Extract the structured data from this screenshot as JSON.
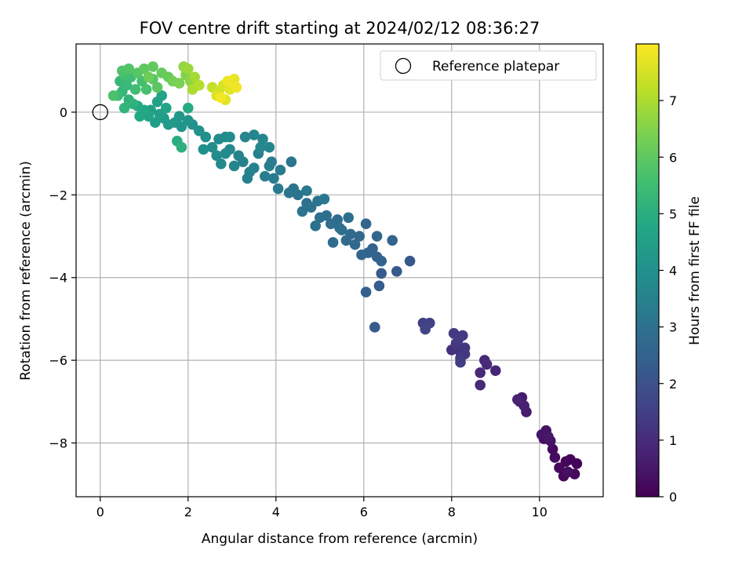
{
  "chart_data": {
    "type": "scatter",
    "title": "FOV centre drift starting at 2024/02/12 08:36:27",
    "xlabel": "Angular distance from reference (arcmin)",
    "ylabel": "Rotation from reference (arcmin)",
    "xlim": [
      -0.55,
      11.45
    ],
    "ylim": [
      -9.3,
      1.65
    ],
    "xticks": [
      0,
      2,
      4,
      6,
      8,
      10
    ],
    "yticks": [
      0,
      -2,
      -4,
      -6,
      -8
    ],
    "grid": true,
    "legend": {
      "position": "top-right",
      "entries": [
        "Reference platepar"
      ]
    },
    "reference_point": {
      "label": "Reference platepar",
      "x": 0,
      "y": 0
    },
    "colorbar": {
      "label": "Hours from first FF file",
      "colormap": "viridis",
      "range": [
        0,
        8.0
      ],
      "ticks": [
        0,
        1,
        2,
        3,
        4,
        5,
        6,
        7
      ]
    },
    "points": [
      {
        "x": 10.85,
        "y": -8.5,
        "hours": 0.05
      },
      {
        "x": 10.7,
        "y": -8.4,
        "hours": 0.1
      },
      {
        "x": 10.6,
        "y": -8.45,
        "hours": 0.12
      },
      {
        "x": 10.8,
        "y": -8.75,
        "hours": 0.15
      },
      {
        "x": 10.55,
        "y": -8.8,
        "hours": 0.18
      },
      {
        "x": 10.45,
        "y": -8.6,
        "hours": 0.2
      },
      {
        "x": 10.3,
        "y": -8.15,
        "hours": 0.25
      },
      {
        "x": 10.35,
        "y": -8.35,
        "hours": 0.28
      },
      {
        "x": 10.65,
        "y": -8.7,
        "hours": 0.3
      },
      {
        "x": 10.1,
        "y": -7.9,
        "hours": 0.35
      },
      {
        "x": 10.15,
        "y": -7.7,
        "hours": 0.4
      },
      {
        "x": 10.25,
        "y": -7.95,
        "hours": 0.42
      },
      {
        "x": 10.05,
        "y": -7.8,
        "hours": 0.45
      },
      {
        "x": 10.2,
        "y": -7.85,
        "hours": 0.5
      },
      {
        "x": 9.6,
        "y": -6.9,
        "hours": 0.6
      },
      {
        "x": 9.7,
        "y": -7.25,
        "hours": 0.65
      },
      {
        "x": 9.55,
        "y": -7.0,
        "hours": 0.7
      },
      {
        "x": 9.65,
        "y": -7.1,
        "hours": 0.72
      },
      {
        "x": 9.5,
        "y": -6.95,
        "hours": 0.75
      },
      {
        "x": 9.0,
        "y": -6.25,
        "hours": 0.85
      },
      {
        "x": 8.75,
        "y": -6.0,
        "hours": 0.9
      },
      {
        "x": 8.65,
        "y": -6.3,
        "hours": 0.92
      },
      {
        "x": 8.8,
        "y": -6.1,
        "hours": 0.95
      },
      {
        "x": 8.65,
        "y": -6.6,
        "hours": 0.98
      },
      {
        "x": 8.0,
        "y": -5.75,
        "hours": 1.1
      },
      {
        "x": 8.2,
        "y": -5.8,
        "hours": 1.15
      },
      {
        "x": 8.3,
        "y": -5.7,
        "hours": 1.2
      },
      {
        "x": 8.1,
        "y": -5.6,
        "hours": 1.25
      },
      {
        "x": 8.2,
        "y": -5.95,
        "hours": 1.3
      },
      {
        "x": 8.3,
        "y": -5.85,
        "hours": 1.32
      },
      {
        "x": 8.05,
        "y": -5.35,
        "hours": 1.35
      },
      {
        "x": 8.25,
        "y": -5.4,
        "hours": 1.38
      },
      {
        "x": 8.15,
        "y": -5.5,
        "hours": 1.4
      },
      {
        "x": 8.2,
        "y": -6.05,
        "hours": 1.42
      },
      {
        "x": 7.35,
        "y": -5.1,
        "hours": 1.5
      },
      {
        "x": 7.5,
        "y": -5.1,
        "hours": 1.55
      },
      {
        "x": 7.4,
        "y": -5.25,
        "hours": 1.6
      },
      {
        "x": 7.05,
        "y": -3.6,
        "hours": 2.2
      },
      {
        "x": 6.75,
        "y": -3.85,
        "hours": 2.25
      },
      {
        "x": 6.4,
        "y": -3.9,
        "hours": 2.3
      },
      {
        "x": 6.35,
        "y": -4.2,
        "hours": 2.35
      },
      {
        "x": 6.25,
        "y": -5.2,
        "hours": 2.3
      },
      {
        "x": 6.05,
        "y": -4.35,
        "hours": 2.4
      },
      {
        "x": 6.3,
        "y": -3.5,
        "hours": 2.45
      },
      {
        "x": 6.2,
        "y": -3.3,
        "hours": 2.5
      },
      {
        "x": 6.1,
        "y": -3.4,
        "hours": 2.55
      },
      {
        "x": 5.95,
        "y": -3.45,
        "hours": 2.6
      },
      {
        "x": 6.4,
        "y": -3.6,
        "hours": 2.6
      },
      {
        "x": 6.65,
        "y": -3.1,
        "hours": 2.55
      },
      {
        "x": 6.05,
        "y": -2.7,
        "hours": 2.62
      },
      {
        "x": 6.3,
        "y": -3.0,
        "hours": 2.65
      },
      {
        "x": 5.8,
        "y": -3.2,
        "hours": 2.7
      },
      {
        "x": 5.9,
        "y": -3.0,
        "hours": 2.72
      },
      {
        "x": 5.7,
        "y": -2.95,
        "hours": 2.75
      },
      {
        "x": 5.6,
        "y": -3.1,
        "hours": 2.78
      },
      {
        "x": 5.5,
        "y": -2.85,
        "hours": 2.8
      },
      {
        "x": 5.3,
        "y": -3.15,
        "hours": 2.82
      },
      {
        "x": 5.4,
        "y": -2.6,
        "hours": 2.85
      },
      {
        "x": 5.25,
        "y": -2.7,
        "hours": 2.88
      },
      {
        "x": 5.15,
        "y": -2.5,
        "hours": 2.9
      },
      {
        "x": 5.0,
        "y": -2.55,
        "hours": 2.92
      },
      {
        "x": 4.9,
        "y": -2.75,
        "hours": 2.95
      },
      {
        "x": 4.8,
        "y": -2.3,
        "hours": 2.98
      },
      {
        "x": 4.95,
        "y": -2.15,
        "hours": 3.0
      },
      {
        "x": 4.7,
        "y": -2.2,
        "hours": 3.02
      },
      {
        "x": 4.6,
        "y": -2.4,
        "hours": 3.05
      },
      {
        "x": 4.5,
        "y": -2.0,
        "hours": 3.08
      },
      {
        "x": 4.4,
        "y": -1.85,
        "hours": 3.1
      },
      {
        "x": 4.3,
        "y": -1.95,
        "hours": 3.12
      },
      {
        "x": 4.35,
        "y": -1.2,
        "hours": 3.15
      },
      {
        "x": 4.7,
        "y": -1.9,
        "hours": 3.18
      },
      {
        "x": 5.1,
        "y": -2.1,
        "hours": 3.2
      },
      {
        "x": 5.45,
        "y": -2.8,
        "hours": 2.9
      },
      {
        "x": 5.65,
        "y": -2.55,
        "hours": 2.95
      },
      {
        "x": 4.05,
        "y": -1.85,
        "hours": 3.25
      },
      {
        "x": 3.95,
        "y": -1.6,
        "hours": 3.3
      },
      {
        "x": 4.1,
        "y": -1.4,
        "hours": 3.32
      },
      {
        "x": 3.85,
        "y": -1.3,
        "hours": 3.35
      },
      {
        "x": 3.75,
        "y": -1.55,
        "hours": 3.38
      },
      {
        "x": 3.9,
        "y": -1.2,
        "hours": 3.4
      },
      {
        "x": 3.6,
        "y": -1.0,
        "hours": 3.42
      },
      {
        "x": 3.5,
        "y": -1.35,
        "hours": 3.45
      },
      {
        "x": 3.4,
        "y": -1.45,
        "hours": 3.48
      },
      {
        "x": 3.35,
        "y": -1.6,
        "hours": 3.5
      },
      {
        "x": 3.25,
        "y": -1.2,
        "hours": 3.52
      },
      {
        "x": 3.15,
        "y": -1.05,
        "hours": 3.55
      },
      {
        "x": 3.05,
        "y": -1.3,
        "hours": 3.58
      },
      {
        "x": 3.3,
        "y": -0.6,
        "hours": 3.6
      },
      {
        "x": 3.5,
        "y": -0.55,
        "hours": 3.62
      },
      {
        "x": 3.7,
        "y": -0.65,
        "hours": 3.65
      },
      {
        "x": 3.85,
        "y": -0.85,
        "hours": 3.68
      },
      {
        "x": 3.65,
        "y": -0.85,
        "hours": 3.7
      },
      {
        "x": 2.95,
        "y": -0.9,
        "hours": 3.72
      },
      {
        "x": 2.85,
        "y": -1.0,
        "hours": 3.75
      },
      {
        "x": 2.75,
        "y": -1.25,
        "hours": 3.78
      },
      {
        "x": 2.65,
        "y": -1.05,
        "hours": 3.8
      },
      {
        "x": 2.7,
        "y": -0.65,
        "hours": 3.82
      },
      {
        "x": 2.85,
        "y": -0.6,
        "hours": 3.85
      },
      {
        "x": 2.95,
        "y": -0.6,
        "hours": 3.88
      },
      {
        "x": 2.55,
        "y": -0.85,
        "hours": 3.9
      },
      {
        "x": 2.4,
        "y": -0.6,
        "hours": 3.95
      },
      {
        "x": 2.35,
        "y": -0.9,
        "hours": 3.98
      },
      {
        "x": 2.25,
        "y": -0.45,
        "hours": 4.0
      },
      {
        "x": 2.1,
        "y": -0.3,
        "hours": 4.05
      },
      {
        "x": 2.0,
        "y": -0.2,
        "hours": 4.1
      },
      {
        "x": 1.85,
        "y": -0.35,
        "hours": 4.15
      },
      {
        "x": 1.8,
        "y": -0.1,
        "hours": 4.2
      },
      {
        "x": 1.7,
        "y": -0.25,
        "hours": 4.25
      },
      {
        "x": 1.55,
        "y": -0.3,
        "hours": 4.3
      },
      {
        "x": 1.45,
        "y": -0.15,
        "hours": 4.35
      },
      {
        "x": 1.35,
        "y": -0.05,
        "hours": 4.4
      },
      {
        "x": 1.25,
        "y": -0.25,
        "hours": 4.45
      },
      {
        "x": 1.15,
        "y": 0.05,
        "hours": 4.5
      },
      {
        "x": 1.3,
        "y": 0.25,
        "hours": 4.55
      },
      {
        "x": 1.4,
        "y": 0.4,
        "hours": 4.6
      },
      {
        "x": 1.5,
        "y": 0.1,
        "hours": 4.65
      },
      {
        "x": 1.1,
        "y": -0.1,
        "hours": 4.7
      },
      {
        "x": 1.0,
        "y": 0.05,
        "hours": 4.75
      },
      {
        "x": 0.9,
        "y": -0.1,
        "hours": 4.8
      },
      {
        "x": 0.85,
        "y": 0.15,
        "hours": 4.85
      },
      {
        "x": 1.75,
        "y": -0.7,
        "hours": 5.0
      },
      {
        "x": 1.85,
        "y": -0.85,
        "hours": 5.05
      },
      {
        "x": 2.0,
        "y": 0.1,
        "hours": 4.9
      },
      {
        "x": 0.75,
        "y": 0.2,
        "hours": 5.1
      },
      {
        "x": 0.65,
        "y": 0.3,
        "hours": 5.15
      },
      {
        "x": 0.55,
        "y": 0.1,
        "hours": 5.2
      },
      {
        "x": 0.5,
        "y": 0.5,
        "hours": 5.25
      },
      {
        "x": 0.45,
        "y": 0.75,
        "hours": 5.3
      },
      {
        "x": 0.6,
        "y": 0.65,
        "hours": 5.35
      },
      {
        "x": 0.4,
        "y": 0.4,
        "hours": 5.4
      },
      {
        "x": 0.7,
        "y": 0.85,
        "hours": 5.45
      },
      {
        "x": 0.8,
        "y": 0.55,
        "hours": 5.5
      },
      {
        "x": 0.55,
        "y": 0.9,
        "hours": 5.55
      },
      {
        "x": 0.95,
        "y": 0.75,
        "hours": 5.6
      },
      {
        "x": 1.05,
        "y": 0.55,
        "hours": 5.65
      },
      {
        "x": 0.3,
        "y": 0.4,
        "hours": 5.7
      },
      {
        "x": 0.5,
        "y": 1.0,
        "hours": 5.75
      },
      {
        "x": 0.65,
        "y": 1.05,
        "hours": 5.8
      },
      {
        "x": 0.85,
        "y": 0.95,
        "hours": 5.85
      },
      {
        "x": 1.2,
        "y": 0.8,
        "hours": 5.9
      },
      {
        "x": 1.3,
        "y": 0.6,
        "hours": 5.95
      },
      {
        "x": 1.0,
        "y": 1.05,
        "hours": 6.0
      },
      {
        "x": 1.2,
        "y": 1.1,
        "hours": 6.05
      },
      {
        "x": 1.4,
        "y": 0.95,
        "hours": 6.1
      },
      {
        "x": 1.55,
        "y": 0.85,
        "hours": 6.15
      },
      {
        "x": 1.1,
        "y": 0.85,
        "hours": 6.2
      },
      {
        "x": 1.65,
        "y": 0.75,
        "hours": 6.3
      },
      {
        "x": 1.8,
        "y": 0.7,
        "hours": 6.4
      },
      {
        "x": 1.95,
        "y": 0.9,
        "hours": 6.5
      },
      {
        "x": 2.05,
        "y": 0.75,
        "hours": 6.6
      },
      {
        "x": 1.9,
        "y": 1.1,
        "hours": 6.7
      },
      {
        "x": 2.0,
        "y": 1.05,
        "hours": 6.8
      },
      {
        "x": 2.15,
        "y": 0.85,
        "hours": 6.9
      },
      {
        "x": 2.1,
        "y": 0.55,
        "hours": 7.0
      },
      {
        "x": 2.25,
        "y": 0.65,
        "hours": 7.1
      },
      {
        "x": 2.55,
        "y": 0.6,
        "hours": 7.3
      },
      {
        "x": 2.7,
        "y": 0.5,
        "hours": 7.4
      },
      {
        "x": 2.8,
        "y": 0.65,
        "hours": 7.5
      },
      {
        "x": 2.65,
        "y": 0.4,
        "hours": 7.6
      },
      {
        "x": 2.85,
        "y": 0.3,
        "hours": 7.65
      },
      {
        "x": 2.95,
        "y": 0.55,
        "hours": 7.7
      },
      {
        "x": 3.05,
        "y": 0.8,
        "hours": 7.75
      },
      {
        "x": 2.9,
        "y": 0.75,
        "hours": 7.8
      },
      {
        "x": 3.1,
        "y": 0.6,
        "hours": 7.85
      },
      {
        "x": 2.75,
        "y": 0.35,
        "hours": 7.9
      }
    ]
  }
}
